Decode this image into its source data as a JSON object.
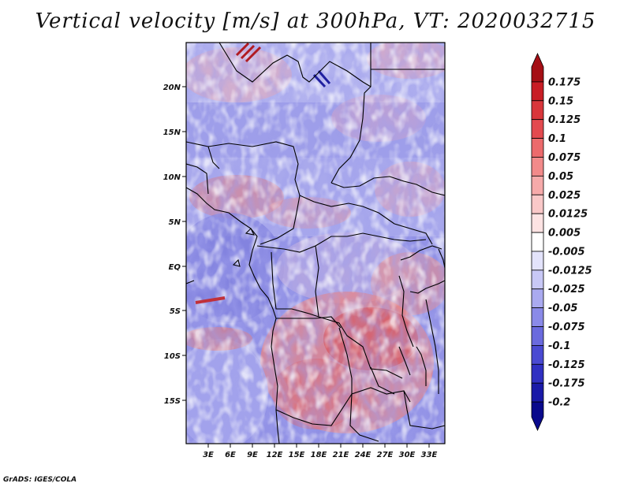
{
  "title": "Vertical velocity [m/s] at 300hPa, VT: 2020032715",
  "credit": "GrADS: IGES/COLA",
  "map": {
    "lat_labels": [
      "20N",
      "15N",
      "10N",
      "5N",
      "EQ",
      "5S",
      "10S",
      "15S"
    ],
    "lon_labels": [
      "3E",
      "6E",
      "9E",
      "12E",
      "15E",
      "18E",
      "21E",
      "24E",
      "27E",
      "30E",
      "33E"
    ]
  },
  "colorbar": {
    "labels": [
      "0.175",
      "0.15",
      "0.125",
      "0.1",
      "0.075",
      "0.05",
      "0.025",
      "0.0125",
      "0.005",
      "-0.005",
      "-0.0125",
      "-0.025",
      "-0.05",
      "-0.075",
      "-0.1",
      "-0.125",
      "-0.175",
      "-0.2"
    ],
    "colors": [
      "#a50f15",
      "#c81d25",
      "#d9363b",
      "#e34a4f",
      "#ec6a6c",
      "#f28a8a",
      "#f6aaaa",
      "#f9c8c8",
      "#fde3e3",
      "#ffffff",
      "#e3e3fb",
      "#c8c8f6",
      "#aaaaf0",
      "#8a8ae8",
      "#6a6ade",
      "#4a4ad2",
      "#3030c2",
      "#1a1aa8",
      "#0a0a8c"
    ]
  }
}
